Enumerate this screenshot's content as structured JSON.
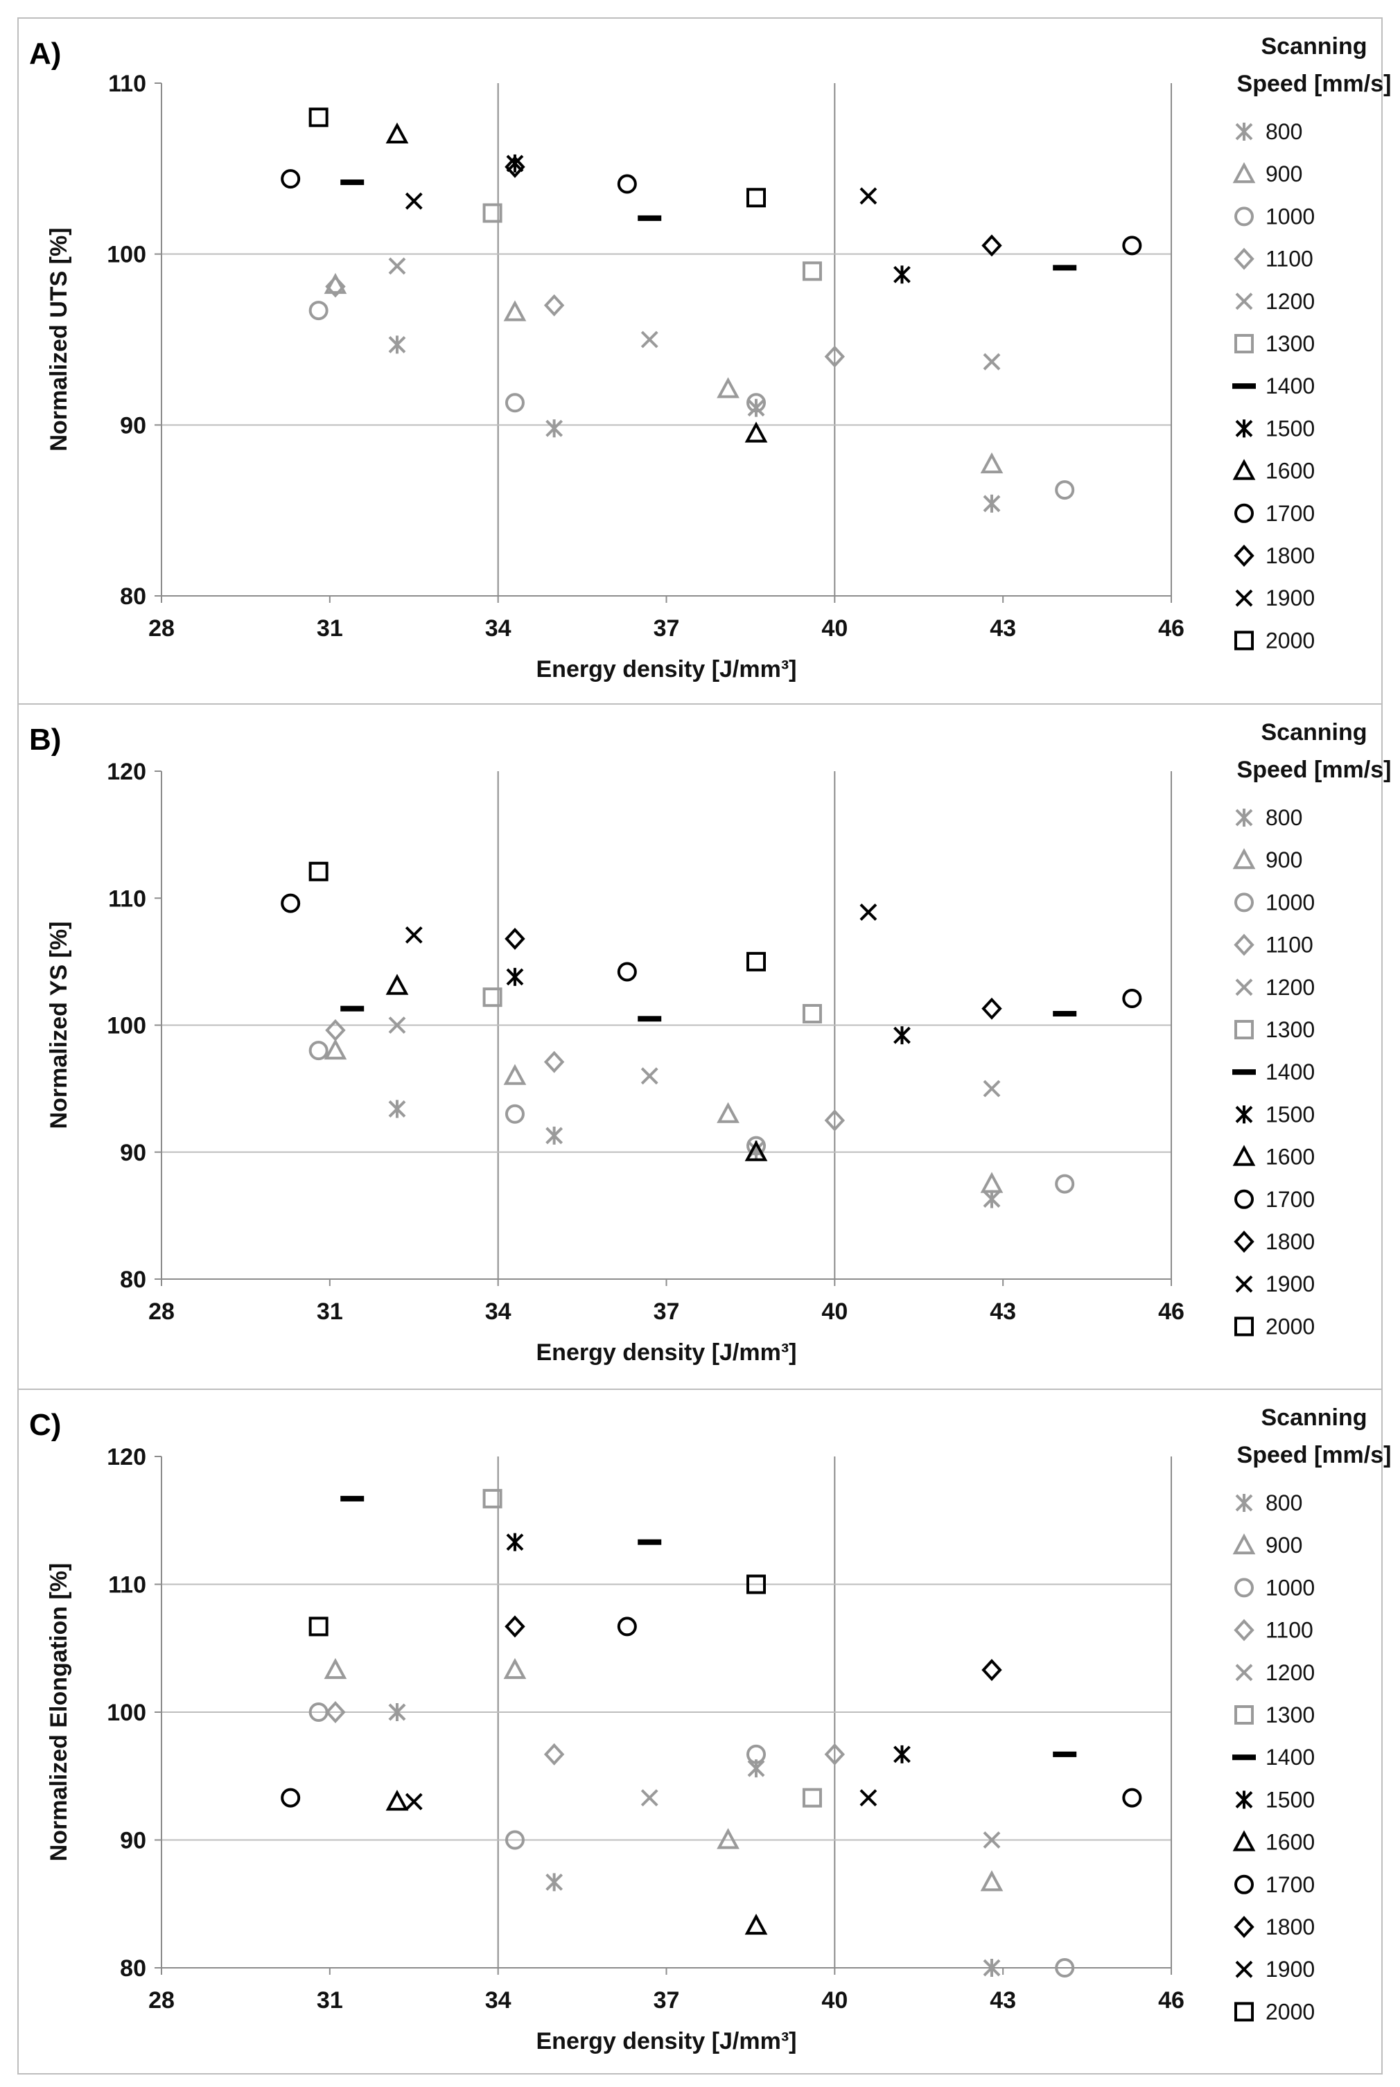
{
  "series_styles": [
    {
      "name": "800",
      "marker": "asterisk",
      "color": "#9a9a9a"
    },
    {
      "name": "900",
      "marker": "triangle",
      "color": "#9a9a9a"
    },
    {
      "name": "1000",
      "marker": "circle",
      "color": "#9a9a9a"
    },
    {
      "name": "1100",
      "marker": "diamond",
      "color": "#9a9a9a"
    },
    {
      "name": "1200",
      "marker": "x",
      "color": "#9a9a9a"
    },
    {
      "name": "1300",
      "marker": "square",
      "color": "#9a9a9a"
    },
    {
      "name": "1400",
      "marker": "dash",
      "color": "#000000"
    },
    {
      "name": "1500",
      "marker": "asterisk",
      "color": "#000000"
    },
    {
      "name": "1600",
      "marker": "triangle",
      "color": "#000000"
    },
    {
      "name": "1700",
      "marker": "circle",
      "color": "#000000"
    },
    {
      "name": "1800",
      "marker": "diamond",
      "color": "#000000"
    },
    {
      "name": "1900",
      "marker": "x",
      "color": "#000000"
    },
    {
      "name": "2000",
      "marker": "square",
      "color": "#000000"
    }
  ],
  "chart_data": [
    {
      "panel": "A)",
      "type": "scatter",
      "xlabel": "Energy density [J/mm³]",
      "ylabel": "Normalized UTS [%]",
      "xlim": [
        28,
        46
      ],
      "ylim": [
        80,
        110
      ],
      "xticks": [
        28,
        31,
        34,
        37,
        40,
        43,
        46
      ],
      "yticks": [
        80,
        90,
        100,
        110
      ],
      "grid": "vertical at 34 and 40, horizontal at 90 and 100",
      "legend_title": [
        "Scanning",
        "Speed [mm/s]"
      ],
      "legend_position": "right",
      "series": [
        {
          "name": "800",
          "points": [
            [
              32.2,
              94.7
            ],
            [
              35.0,
              89.8
            ],
            [
              38.6,
              91.0
            ],
            [
              42.8,
              85.4
            ]
          ]
        },
        {
          "name": "900",
          "points": [
            [
              31.1,
              98.2
            ],
            [
              34.3,
              96.6
            ],
            [
              38.1,
              92.1
            ],
            [
              42.8,
              87.7
            ]
          ]
        },
        {
          "name": "1000",
          "points": [
            [
              30.8,
              96.7
            ],
            [
              34.3,
              91.3
            ],
            [
              38.6,
              91.3
            ],
            [
              44.1,
              86.2
            ]
          ]
        },
        {
          "name": "1100",
          "points": [
            [
              31.1,
              98.1
            ],
            [
              35.0,
              97.0
            ],
            [
              40.0,
              94.0
            ]
          ]
        },
        {
          "name": "1200",
          "points": [
            [
              32.2,
              99.3
            ],
            [
              36.7,
              95.0
            ],
            [
              42.8,
              93.7
            ]
          ]
        },
        {
          "name": "1300",
          "points": [
            [
              33.9,
              102.4
            ],
            [
              39.6,
              99.0
            ]
          ]
        },
        {
          "name": "1400",
          "points": [
            [
              31.4,
              104.2
            ],
            [
              36.7,
              102.1
            ],
            [
              44.1,
              99.2
            ]
          ]
        },
        {
          "name": "1500",
          "points": [
            [
              34.3,
              105.3
            ],
            [
              41.2,
              98.8
            ]
          ]
        },
        {
          "name": "1600",
          "points": [
            [
              32.2,
              107.0
            ],
            [
              38.6,
              89.5
            ]
          ]
        },
        {
          "name": "1700",
          "points": [
            [
              30.3,
              104.4
            ],
            [
              36.3,
              104.1
            ],
            [
              45.3,
              100.5
            ]
          ]
        },
        {
          "name": "1800",
          "points": [
            [
              34.3,
              105.1
            ],
            [
              42.8,
              100.5
            ]
          ]
        },
        {
          "name": "1900",
          "points": [
            [
              32.5,
              103.1
            ],
            [
              40.6,
              103.4
            ]
          ]
        },
        {
          "name": "2000",
          "points": [
            [
              30.8,
              108.0
            ],
            [
              38.6,
              103.3
            ]
          ]
        }
      ]
    },
    {
      "panel": "B)",
      "type": "scatter",
      "xlabel": "Energy density [J/mm³]",
      "ylabel": "Normalized YS [%]",
      "xlim": [
        28,
        46
      ],
      "ylim": [
        80,
        120
      ],
      "xticks": [
        28,
        31,
        34,
        37,
        40,
        43,
        46
      ],
      "yticks": [
        80,
        90,
        100,
        110,
        120
      ],
      "grid": "vertical at 34 and 40, horizontal at 90 and 100",
      "legend_title": [
        "Scanning",
        "Speed [mm/s]"
      ],
      "legend_position": "right",
      "series": [
        {
          "name": "800",
          "points": [
            [
              32.2,
              93.4
            ],
            [
              35.0,
              91.3
            ],
            [
              38.6,
              90.2
            ],
            [
              42.8,
              86.3
            ]
          ]
        },
        {
          "name": "900",
          "points": [
            [
              31.1,
              98.0
            ],
            [
              34.3,
              96.0
            ],
            [
              38.1,
              93.0
            ],
            [
              42.8,
              87.5
            ]
          ]
        },
        {
          "name": "1000",
          "points": [
            [
              30.8,
              98.0
            ],
            [
              34.3,
              93.0
            ],
            [
              38.6,
              90.5
            ],
            [
              44.1,
              87.5
            ]
          ]
        },
        {
          "name": "1100",
          "points": [
            [
              31.1,
              99.6
            ],
            [
              35.0,
              97.1
            ],
            [
              40.0,
              92.5
            ]
          ]
        },
        {
          "name": "1200",
          "points": [
            [
              32.2,
              100.0
            ],
            [
              36.7,
              96.0
            ],
            [
              42.8,
              95.0
            ]
          ]
        },
        {
          "name": "1300",
          "points": [
            [
              33.9,
              102.2
            ],
            [
              39.6,
              100.9
            ]
          ]
        },
        {
          "name": "1400",
          "points": [
            [
              31.4,
              101.3
            ],
            [
              36.7,
              100.5
            ],
            [
              44.1,
              100.9
            ]
          ]
        },
        {
          "name": "1500",
          "points": [
            [
              34.3,
              103.8
            ],
            [
              41.2,
              99.2
            ]
          ]
        },
        {
          "name": "1600",
          "points": [
            [
              32.2,
              103.1
            ],
            [
              38.6,
              90.0
            ]
          ]
        },
        {
          "name": "1700",
          "points": [
            [
              30.3,
              109.6
            ],
            [
              36.3,
              104.2
            ],
            [
              45.3,
              102.1
            ]
          ]
        },
        {
          "name": "1800",
          "points": [
            [
              34.3,
              106.8
            ],
            [
              42.8,
              101.3
            ]
          ]
        },
        {
          "name": "1900",
          "points": [
            [
              32.5,
              107.1
            ],
            [
              40.6,
              108.9
            ]
          ]
        },
        {
          "name": "2000",
          "points": [
            [
              30.8,
              112.1
            ],
            [
              38.6,
              105.0
            ]
          ]
        }
      ]
    },
    {
      "panel": "C)",
      "type": "scatter",
      "xlabel": "Energy density [J/mm³]",
      "ylabel": "Normalized Elongation [%]",
      "xlim": [
        28,
        46
      ],
      "ylim": [
        80,
        120
      ],
      "xticks": [
        28,
        31,
        34,
        37,
        40,
        43,
        46
      ],
      "yticks": [
        80,
        90,
        100,
        110,
        120
      ],
      "grid": "vertical at 34 and 40, horizontal at 90 and 100 and 110",
      "legend_title": [
        "Scanning",
        "Speed [mm/s]"
      ],
      "legend_position": "right",
      "series": [
        {
          "name": "800",
          "points": [
            [
              32.2,
              100.0
            ],
            [
              35.0,
              86.7
            ],
            [
              38.6,
              95.6
            ],
            [
              42.8,
              80.0
            ]
          ]
        },
        {
          "name": "900",
          "points": [
            [
              31.1,
              103.3
            ],
            [
              34.3,
              103.3
            ],
            [
              38.1,
              90.0
            ],
            [
              42.8,
              86.7
            ]
          ]
        },
        {
          "name": "1000",
          "points": [
            [
              30.8,
              100.0
            ],
            [
              34.3,
              90.0
            ],
            [
              38.6,
              96.7
            ],
            [
              44.1,
              80.0
            ]
          ]
        },
        {
          "name": "1100",
          "points": [
            [
              31.1,
              100.0
            ],
            [
              35.0,
              96.7
            ],
            [
              40.0,
              96.7
            ]
          ]
        },
        {
          "name": "1200",
          "points": [
            [
              32.2,
              100.0
            ],
            [
              36.7,
              93.3
            ],
            [
              42.8,
              90.0
            ]
          ]
        },
        {
          "name": "1300",
          "points": [
            [
              33.9,
              116.7
            ],
            [
              39.6,
              93.3
            ]
          ]
        },
        {
          "name": "1400",
          "points": [
            [
              31.4,
              116.7
            ],
            [
              36.7,
              113.3
            ],
            [
              44.1,
              96.7
            ]
          ]
        },
        {
          "name": "1500",
          "points": [
            [
              34.3,
              113.3
            ],
            [
              41.2,
              96.7
            ]
          ]
        },
        {
          "name": "1600",
          "points": [
            [
              32.2,
              93.0
            ],
            [
              38.6,
              83.3
            ]
          ]
        },
        {
          "name": "1700",
          "points": [
            [
              30.3,
              93.3
            ],
            [
              36.3,
              106.7
            ],
            [
              45.3,
              93.3
            ]
          ]
        },
        {
          "name": "1800",
          "points": [
            [
              34.3,
              106.7
            ],
            [
              42.8,
              103.3
            ]
          ]
        },
        {
          "name": "1900",
          "points": [
            [
              32.5,
              93.0
            ],
            [
              40.6,
              93.3
            ]
          ]
        },
        {
          "name": "2000",
          "points": [
            [
              30.8,
              106.7
            ],
            [
              38.6,
              110.0
            ]
          ]
        }
      ]
    }
  ]
}
